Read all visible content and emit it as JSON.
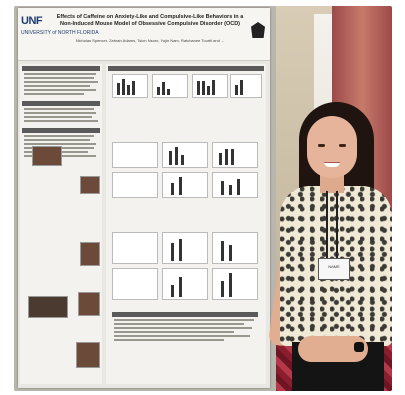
{
  "poster": {
    "logo": "UNF",
    "logo_sub": "UNIVERSITY of NORTH FLORIDA",
    "title": "Effects of Caffeine on Anxiety-Like and Compulsive-Like Behaviors in a Non-Induced Mouse Model of Obsessive Compulsive Disorder (OCD)",
    "authors": "Nicholas Spencer, Zahrah Adams, Tsion Nsoro, Yujin Nam, Ratchanee Tourtil and ...",
    "badge_text": "NAME"
  },
  "colors": {
    "logo": "#1f3c72",
    "poster_bg": "#e9e7e1",
    "carpet": "#8b1e2e"
  }
}
